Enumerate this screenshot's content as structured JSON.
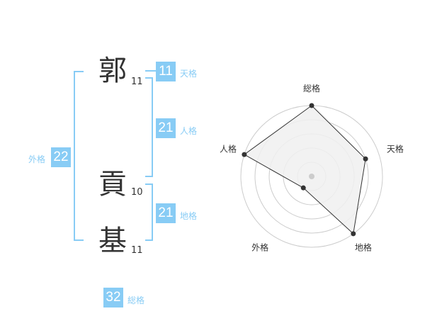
{
  "name": {
    "characters": [
      {
        "char": "郭",
        "strokes": "11"
      },
      {
        "char": "貢",
        "strokes": "10"
      },
      {
        "char": "基",
        "strokes": "11"
      }
    ]
  },
  "fortunes": {
    "tenkaku": {
      "label": "天格",
      "value": "11"
    },
    "jinkaku": {
      "label": "人格",
      "value": "21"
    },
    "chikaku": {
      "label": "地格",
      "value": "21"
    },
    "gaikaku": {
      "label": "外格",
      "value": "22"
    },
    "soukaku": {
      "label": "総格",
      "value": "32"
    }
  },
  "accent_color": "#88ccf5",
  "chart_data": {
    "type": "radar",
    "axes": [
      "総格",
      "天格",
      "地格",
      "外格",
      "人格"
    ],
    "values": [
      5,
      4,
      5,
      1,
      5
    ],
    "range": [
      0,
      5
    ],
    "rings": 5,
    "fill_color": "#f0f0f0",
    "line_color": "#333333"
  }
}
